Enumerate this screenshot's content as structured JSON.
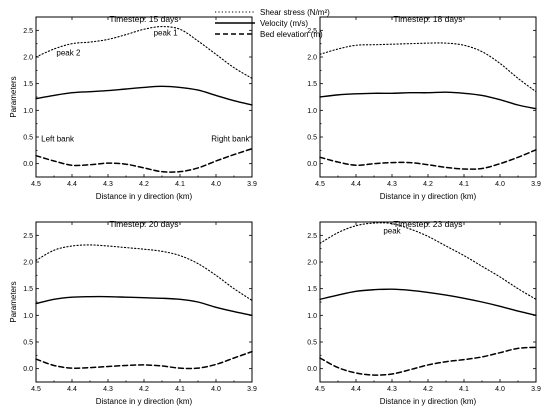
{
  "legend": [
    {
      "series": "shear",
      "label": "Shear stress (N/m²)"
    },
    {
      "series": "velocity",
      "label": "Velocity (m/s)"
    },
    {
      "series": "bed",
      "label": "Bed elevation (m)"
    }
  ],
  "styles": {
    "shear": {
      "dash": "1.2,2.2",
      "width": 1.1
    },
    "velocity": {
      "dash": "",
      "width": 1.4
    },
    "bed": {
      "dash": "5,3",
      "width": 1.5
    }
  },
  "chart_data": [
    {
      "type": "line",
      "title": "Timestep: 15 days",
      "xlabel": "Distance in y direction (km)",
      "ylabel": "Parameters",
      "xlim": [
        4.5,
        3.9
      ],
      "ylim": [
        -0.25,
        2.75
      ],
      "xticks": [
        "4.5",
        "4.4",
        "4.3",
        "4.2",
        "4.1",
        "4.0",
        "3.9"
      ],
      "yticks": [
        "0.0",
        "0.5",
        "1.0",
        "1.5",
        "2.0",
        "2.5"
      ],
      "grid": false,
      "legend": "top-center",
      "annotations": [
        {
          "text": "peak 1",
          "x": 4.14,
          "y": 2.4
        },
        {
          "text": "peak 2",
          "x": 4.41,
          "y": 2.03
        },
        {
          "text": "Left bank",
          "x": 4.44,
          "y": 0.42
        },
        {
          "text": "Right bank",
          "x": 3.96,
          "y": 0.42
        }
      ],
      "series": [
        {
          "key": "shear",
          "x": [
            4.5,
            4.45,
            4.4,
            4.35,
            4.3,
            4.25,
            4.2,
            4.15,
            4.1,
            4.05,
            4.0,
            3.95,
            3.9
          ],
          "y": [
            2.0,
            2.15,
            2.25,
            2.28,
            2.33,
            2.42,
            2.52,
            2.57,
            2.52,
            2.3,
            2.05,
            1.8,
            1.6
          ]
        },
        {
          "key": "velocity",
          "x": [
            4.5,
            4.45,
            4.4,
            4.35,
            4.3,
            4.25,
            4.2,
            4.15,
            4.1,
            4.05,
            4.0,
            3.95,
            3.9
          ],
          "y": [
            1.22,
            1.28,
            1.33,
            1.35,
            1.37,
            1.4,
            1.43,
            1.45,
            1.43,
            1.38,
            1.28,
            1.18,
            1.1
          ]
        },
        {
          "key": "bed",
          "x": [
            4.5,
            4.45,
            4.4,
            4.35,
            4.3,
            4.25,
            4.2,
            4.15,
            4.1,
            4.05,
            4.0,
            3.95,
            3.9
          ],
          "y": [
            0.15,
            0.05,
            -0.03,
            -0.02,
            0.01,
            -0.01,
            -0.08,
            -0.15,
            -0.15,
            -0.08,
            0.05,
            0.17,
            0.28
          ]
        }
      ]
    },
    {
      "type": "line",
      "title": "Timestep: 18 days",
      "xlabel": "Distance in y direction (km)",
      "ylabel": "",
      "xlim": [
        4.5,
        3.9
      ],
      "ylim": [
        -0.25,
        2.75
      ],
      "xticks": [
        "4.5",
        "4.4",
        "4.3",
        "4.2",
        "4.1",
        "4.0",
        "3.9"
      ],
      "yticks": [
        "0.0",
        "0.5",
        "1.0",
        "1.5",
        "2.0",
        "2.5"
      ],
      "grid": false,
      "annotations": [],
      "series": [
        {
          "key": "shear",
          "x": [
            4.5,
            4.45,
            4.4,
            4.35,
            4.3,
            4.25,
            4.2,
            4.15,
            4.1,
            4.05,
            4.0,
            3.95,
            3.9
          ],
          "y": [
            2.05,
            2.15,
            2.22,
            2.23,
            2.24,
            2.25,
            2.26,
            2.26,
            2.22,
            2.1,
            1.88,
            1.6,
            1.35
          ]
        },
        {
          "key": "velocity",
          "x": [
            4.5,
            4.45,
            4.4,
            4.35,
            4.3,
            4.25,
            4.2,
            4.15,
            4.1,
            4.05,
            4.0,
            3.95,
            3.9
          ],
          "y": [
            1.25,
            1.29,
            1.31,
            1.32,
            1.32,
            1.33,
            1.33,
            1.34,
            1.32,
            1.28,
            1.2,
            1.1,
            1.03
          ]
        },
        {
          "key": "bed",
          "x": [
            4.5,
            4.45,
            4.4,
            4.35,
            4.3,
            4.25,
            4.2,
            4.15,
            4.1,
            4.05,
            4.0,
            3.95,
            3.9
          ],
          "y": [
            0.12,
            0.03,
            -0.03,
            0.0,
            0.02,
            0.02,
            -0.02,
            -0.07,
            -0.1,
            -0.09,
            0.0,
            0.12,
            0.26
          ]
        }
      ]
    },
    {
      "type": "line",
      "title": "Timestep: 20 days",
      "xlabel": "Distance in y direction (km)",
      "ylabel": "Parameters",
      "xlim": [
        4.5,
        3.9
      ],
      "ylim": [
        -0.25,
        2.75
      ],
      "xticks": [
        "4.5",
        "4.4",
        "4.3",
        "4.2",
        "4.1",
        "4.0",
        "3.9"
      ],
      "yticks": [
        "0.0",
        "0.5",
        "1.0",
        "1.5",
        "2.0",
        "2.5"
      ],
      "grid": false,
      "annotations": [],
      "series": [
        {
          "key": "shear",
          "x": [
            4.5,
            4.45,
            4.4,
            4.35,
            4.3,
            4.25,
            4.2,
            4.15,
            4.1,
            4.05,
            4.0,
            3.95,
            3.9
          ],
          "y": [
            2.03,
            2.22,
            2.3,
            2.32,
            2.3,
            2.27,
            2.24,
            2.2,
            2.12,
            1.97,
            1.75,
            1.5,
            1.28
          ]
        },
        {
          "key": "velocity",
          "x": [
            4.5,
            4.45,
            4.4,
            4.35,
            4.3,
            4.25,
            4.2,
            4.15,
            4.1,
            4.05,
            4.0,
            3.95,
            3.9
          ],
          "y": [
            1.22,
            1.3,
            1.34,
            1.35,
            1.35,
            1.34,
            1.33,
            1.32,
            1.3,
            1.25,
            1.15,
            1.07,
            1.0
          ]
        },
        {
          "key": "bed",
          "x": [
            4.5,
            4.45,
            4.4,
            4.35,
            4.3,
            4.25,
            4.2,
            4.15,
            4.1,
            4.05,
            4.0,
            3.95,
            3.9
          ],
          "y": [
            0.18,
            0.06,
            0.01,
            0.02,
            0.04,
            0.06,
            0.07,
            0.05,
            0.01,
            0.01,
            0.08,
            0.2,
            0.32
          ]
        }
      ]
    },
    {
      "type": "line",
      "title": "Timestep: 23 days",
      "xlabel": "Distance in y direction (km)",
      "ylabel": "",
      "xlim": [
        4.5,
        3.9
      ],
      "ylim": [
        -0.25,
        2.75
      ],
      "xticks": [
        "4.5",
        "4.4",
        "4.3",
        "4.2",
        "4.1",
        "4.0",
        "3.9"
      ],
      "yticks": [
        "0.0",
        "0.5",
        "1.0",
        "1.5",
        "2.0",
        "2.5"
      ],
      "grid": false,
      "annotations": [
        {
          "text": "peak",
          "x": 4.3,
          "y": 2.53
        }
      ],
      "series": [
        {
          "key": "shear",
          "x": [
            4.5,
            4.45,
            4.4,
            4.35,
            4.3,
            4.25,
            4.2,
            4.15,
            4.1,
            4.05,
            4.0,
            3.95,
            3.9
          ],
          "y": [
            2.35,
            2.55,
            2.68,
            2.73,
            2.72,
            2.62,
            2.48,
            2.3,
            2.12,
            1.92,
            1.72,
            1.5,
            1.3
          ]
        },
        {
          "key": "velocity",
          "x": [
            4.5,
            4.45,
            4.4,
            4.35,
            4.3,
            4.25,
            4.2,
            4.15,
            4.1,
            4.05,
            4.0,
            3.95,
            3.9
          ],
          "y": [
            1.3,
            1.38,
            1.45,
            1.48,
            1.49,
            1.47,
            1.43,
            1.38,
            1.32,
            1.25,
            1.17,
            1.08,
            1.0
          ]
        },
        {
          "key": "bed",
          "x": [
            4.5,
            4.45,
            4.4,
            4.35,
            4.3,
            4.25,
            4.2,
            4.15,
            4.1,
            4.05,
            4.0,
            3.95,
            3.9
          ],
          "y": [
            0.2,
            0.02,
            -0.08,
            -0.12,
            -0.1,
            -0.02,
            0.07,
            0.13,
            0.17,
            0.22,
            0.3,
            0.38,
            0.4
          ]
        }
      ]
    }
  ]
}
